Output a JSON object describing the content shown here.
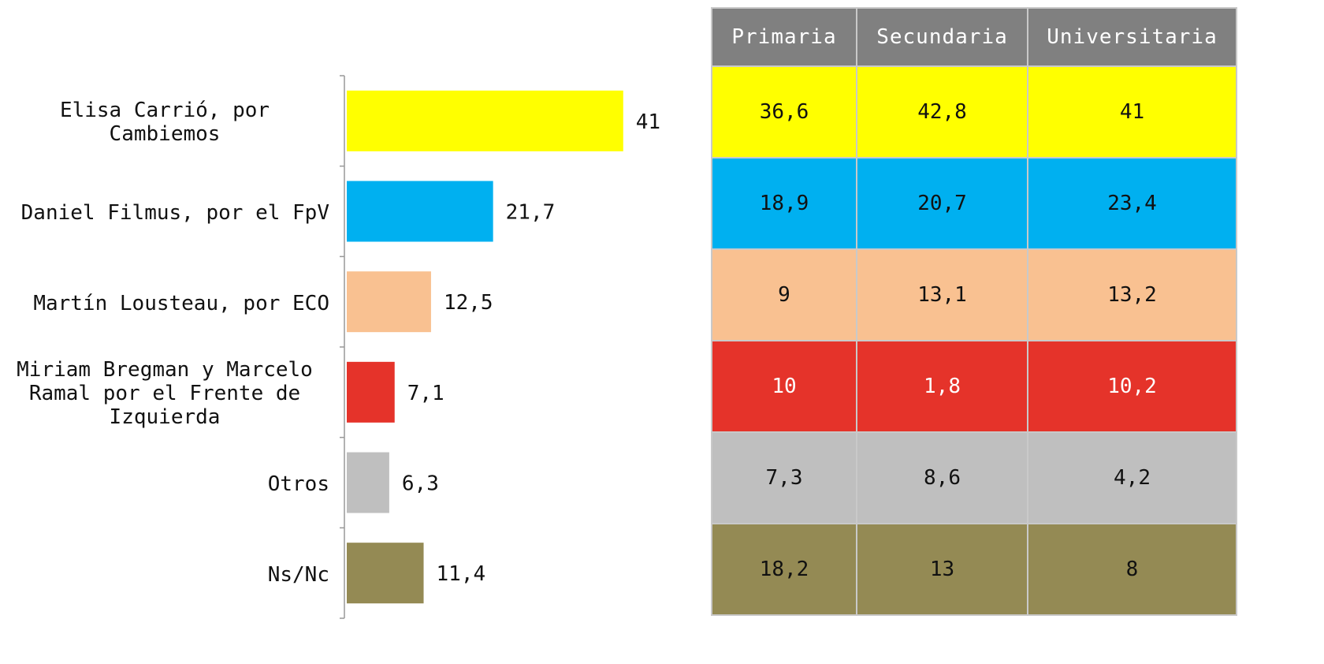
{
  "chart_data": {
    "type": "bar",
    "categories": [
      "Elisa Carrió, por Cambiemos",
      "Daniel Filmus, por el FpV",
      "Martín Lousteau, por ECO",
      "Miriam Bregman y Marcelo Ramal por el Frente de Izquierda",
      "Otros",
      "Ns/Nc"
    ],
    "values": [
      41,
      21.7,
      12.5,
      7.1,
      6.3,
      11.4
    ],
    "value_labels": [
      "41",
      "21,7",
      "12,5",
      "7,1",
      "6,3",
      "11,4"
    ],
    "colors": [
      "#ffff00",
      "#00b0f0",
      "#f9c191",
      "#e5332a",
      "#bfbfbf",
      "#948a54"
    ],
    "xlim": [
      0,
      45
    ]
  },
  "table": {
    "columns": [
      "Primaria",
      "Secundaria",
      "Universitaria"
    ],
    "rows": [
      [
        "36,6",
        "42,8",
        "41"
      ],
      [
        "18,9",
        "20,7",
        "23,4"
      ],
      [
        "9",
        "13,1",
        "13,2"
      ],
      [
        "10",
        "1,8",
        "10,2"
      ],
      [
        "7,3",
        "8,6",
        "4,2"
      ],
      [
        "18,2",
        "13",
        "8"
      ]
    ]
  }
}
